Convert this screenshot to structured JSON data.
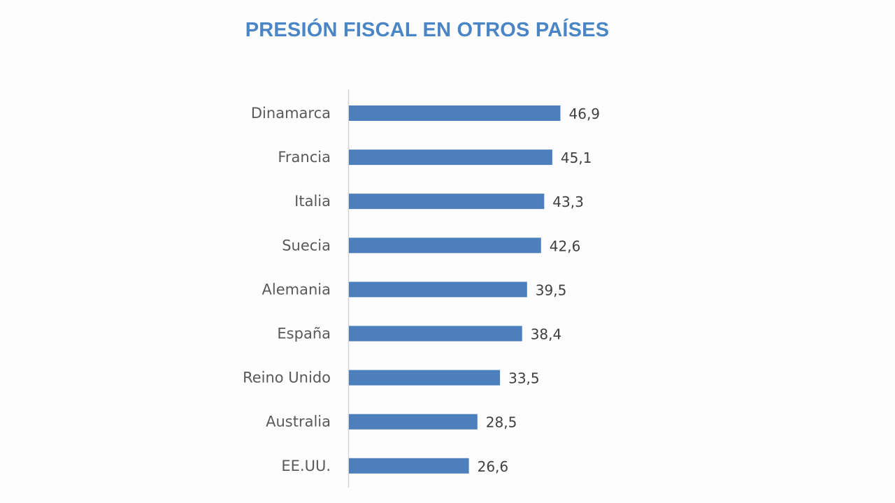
{
  "chart_data": {
    "type": "bar",
    "orientation": "horizontal",
    "title": "PRESIÓN FISCAL EN OTROS PAÍSES",
    "categories": [
      "Dinamarca",
      "Francia",
      "Italia",
      "Suecia",
      "Alemania",
      "España",
      "Reino Unido",
      "Australia",
      "EE.UU."
    ],
    "values": [
      46.9,
      45.1,
      43.3,
      42.6,
      39.5,
      38.4,
      33.5,
      28.5,
      26.6
    ],
    "value_labels": [
      "46,9",
      "45,1",
      "43,3",
      "42,6",
      "39,5",
      "38,4",
      "33,5",
      "28,5",
      "26,6"
    ],
    "xlim": [
      0,
      50
    ],
    "grid": false,
    "legend": "none",
    "bar_color": "#4e7fbd",
    "title_color": "#4a86c5"
  }
}
